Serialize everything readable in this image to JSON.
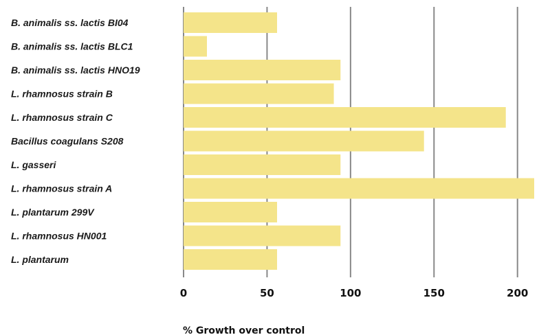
{
  "chart_data": {
    "type": "bar",
    "orientation": "horizontal",
    "categories": [
      "B. animalis ss. lactis BI04",
      "B. animalis ss. lactis BLC1",
      "B. animalis ss. lactis HNO19",
      "L. rhamnosus strain B",
      "L. rhamnosus strain C",
      "Bacillus coagulans S208",
      "L. gasseri",
      "L. rhamnosus strain A",
      "L. plantarum 299V",
      "L. rhamnosus HN001",
      "L. plantarum"
    ],
    "values": [
      56,
      14,
      94,
      90,
      193,
      144,
      94,
      210,
      56,
      94,
      56
    ],
    "xticks": [
      0,
      50,
      100,
      150,
      200
    ],
    "xlim": [
      0,
      210
    ],
    "xlabel": "% Growth over control",
    "ylabel": "",
    "title": "",
    "grid": "vertical",
    "legend": "none",
    "bar_color": "#f4e48a",
    "grid_color": "#888888"
  }
}
